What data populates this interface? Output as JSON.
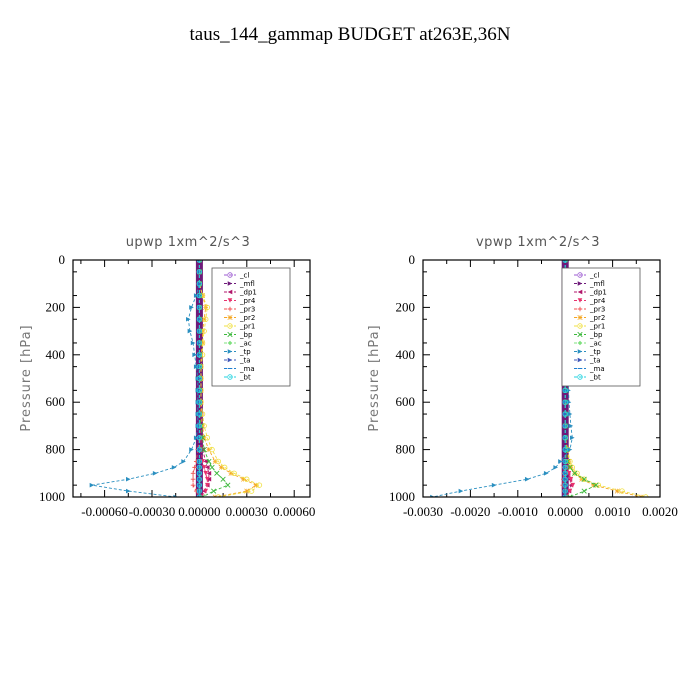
{
  "figure_title": "taus_144_gammap  BUDGET at263E,36N",
  "colors": {
    "_cl": "#9b59d0",
    "_mfl": "#6e1a7a",
    "_dp1": "#b0176b",
    "_pr4": "#e8336e",
    "_pr3": "#f05050",
    "_pr2": "#f5a623",
    "_pr1": "#f0e040",
    "_bp": "#3cb83c",
    "_ac": "#7ee07e",
    "_tp": "#2a8fc0",
    "_ta": "#3f56b8",
    "_ma": "#1f7fd0",
    "_bt": "#22d3e0"
  },
  "chart_data": [
    {
      "type": "line",
      "title": "upwp   1xm^2/s^3",
      "ylabel": "Pressure [hPa]",
      "xlabel": "",
      "xlim": [
        -0.0008,
        0.0007
      ],
      "ylim": [
        1000,
        0
      ],
      "yticks": [
        0,
        200,
        400,
        600,
        800,
        1000
      ],
      "yticklabels": [
        "0",
        "200",
        "400",
        "600",
        "800",
        "1000"
      ],
      "xticks": [
        -0.0006,
        -0.0003,
        0.0,
        0.0003,
        0.0006
      ],
      "xticklabels": [
        "-0.00060",
        "-0.00030",
        "0.00000",
        "0.00030",
        "0.00060"
      ],
      "legend_position": "top-right",
      "y": [
        0,
        50,
        100,
        150,
        200,
        250,
        300,
        350,
        400,
        450,
        500,
        550,
        600,
        650,
        700,
        750,
        800,
        850,
        875,
        900,
        925,
        950,
        975,
        1000
      ],
      "series": [
        {
          "name": "_cl",
          "values": [
            0,
            0,
            0,
            0,
            0,
            0,
            0,
            0,
            0,
            0,
            0,
            0,
            0,
            0,
            0,
            0,
            0,
            0,
            0,
            0,
            0,
            0,
            0,
            0
          ]
        },
        {
          "name": "_mfl",
          "values": [
            0,
            0,
            0,
            0,
            0,
            0,
            0,
            0,
            0,
            0,
            0,
            0,
            0,
            0,
            0,
            0,
            0,
            0,
            0,
            0,
            0,
            0,
            0,
            0
          ]
        },
        {
          "name": "_dp1",
          "values": [
            0,
            0,
            0,
            0,
            0,
            0,
            0,
            0,
            0,
            0,
            0,
            0,
            0,
            1e-05,
            1e-05,
            2e-05,
            2e-05,
            4e-05,
            5e-05,
            6e-05,
            6e-05,
            5e-05,
            3e-05,
            0
          ]
        },
        {
          "name": "_pr4",
          "values": [
            0,
            0,
            0,
            0,
            0,
            0,
            0,
            0,
            0,
            0,
            0,
            0,
            0,
            0,
            0,
            1e-05,
            1e-05,
            2e-05,
            3e-05,
            4e-05,
            5e-05,
            5e-05,
            4e-05,
            1e-05
          ]
        },
        {
          "name": "_pr3",
          "values": [
            0,
            0,
            0,
            0,
            0,
            0,
            0,
            0,
            0,
            0,
            0,
            0,
            0,
            0,
            0,
            0,
            -1e-05,
            -2e-05,
            -3e-05,
            -4e-05,
            -4e-05,
            -4e-05,
            -2e-05,
            0
          ]
        },
        {
          "name": "_pr2",
          "values": [
            0,
            0,
            0,
            2e-05,
            4e-05,
            3e-05,
            2e-05,
            2e-05,
            1e-05,
            1e-05,
            1e-05,
            1e-05,
            1e-05,
            1e-05,
            2e-05,
            3e-05,
            6e-05,
            0.0001,
            0.00014,
            0.0002,
            0.00028,
            0.00036,
            0.0003,
            0.0001
          ]
        },
        {
          "name": "_pr1",
          "values": [
            0,
            0,
            0,
            2e-05,
            5e-05,
            4e-05,
            3e-05,
            2e-05,
            2e-05,
            1e-05,
            1e-05,
            1e-05,
            1e-05,
            2e-05,
            3e-05,
            5e-05,
            8e-05,
            0.00012,
            0.00016,
            0.00022,
            0.0003,
            0.00038,
            0.00033,
            0.00012
          ]
        },
        {
          "name": "_bp",
          "values": [
            0,
            0,
            0,
            0,
            0,
            0,
            0,
            0,
            0,
            0,
            0,
            0,
            0,
            0,
            1e-05,
            2e-05,
            3e-05,
            6e-05,
            8e-05,
            0.00011,
            0.00015,
            0.00018,
            9e-05,
            2e-05
          ]
        },
        {
          "name": "_ac",
          "values": [
            0,
            0,
            0,
            0,
            0,
            0,
            0,
            0,
            0,
            0,
            0,
            0,
            0,
            0,
            0,
            0,
            0,
            0,
            0,
            0,
            0,
            0,
            0,
            0
          ]
        },
        {
          "name": "_tp",
          "values": [
            0,
            0,
            0,
            -2e-05,
            -5e-05,
            -7e-05,
            -6e-05,
            -4e-05,
            -3e-05,
            -2e-05,
            -1e-05,
            -1e-05,
            -1e-05,
            -1e-05,
            -1e-05,
            -2e-05,
            -5e-05,
            -0.0001,
            -0.00016,
            -0.00028,
            -0.00045,
            -0.00068,
            -0.00045,
            -0.00015
          ]
        },
        {
          "name": "_ta",
          "values": [
            0,
            0,
            0,
            0,
            0,
            0,
            0,
            0,
            0,
            0,
            0,
            0,
            0,
            0,
            0,
            0,
            0,
            0,
            0,
            0,
            0,
            0,
            0,
            0
          ]
        },
        {
          "name": "_ma",
          "values": [
            0,
            0,
            0,
            0,
            0,
            0,
            0,
            0,
            0,
            0,
            0,
            0,
            0,
            0,
            0,
            0,
            0,
            0,
            0,
            0,
            0,
            0,
            0,
            0
          ]
        },
        {
          "name": "_bt",
          "values": [
            0,
            0,
            0,
            0,
            0,
            0,
            0,
            0,
            0,
            0,
            0,
            0,
            0,
            0,
            0,
            0,
            0,
            0,
            0,
            0,
            0,
            0,
            0,
            0
          ]
        }
      ]
    },
    {
      "type": "line",
      "title": "vpwp   1xm^2/s^3",
      "ylabel": "Pressure [hPa]",
      "xlabel": "",
      "xlim": [
        -0.003,
        0.002
      ],
      "ylim": [
        1000,
        0
      ],
      "yticks": [
        0,
        200,
        400,
        600,
        800,
        1000
      ],
      "yticklabels": [
        "0",
        "200",
        "400",
        "600",
        "800",
        "1000"
      ],
      "xticks": [
        -0.003,
        -0.002,
        -0.001,
        0.0,
        0.001,
        0.002
      ],
      "xticklabels": [
        "-0.0030",
        "-0.0020",
        "-0.0010",
        "0.0000",
        "0.0010",
        "0.0020"
      ],
      "legend_position": "top-right",
      "y": [
        0,
        50,
        100,
        150,
        200,
        250,
        300,
        350,
        400,
        450,
        500,
        550,
        600,
        650,
        700,
        750,
        800,
        850,
        875,
        900,
        925,
        950,
        975,
        1000
      ],
      "series": [
        {
          "name": "_cl",
          "values": [
            0,
            0,
            0,
            0,
            0,
            0,
            0,
            0,
            0,
            0,
            0,
            0,
            0,
            0,
            0,
            0,
            0,
            0,
            0,
            0,
            0,
            0,
            0,
            0
          ]
        },
        {
          "name": "_mfl",
          "values": [
            0,
            0,
            0,
            0,
            0,
            0,
            0,
            0,
            0,
            0,
            0,
            0,
            0,
            0,
            0,
            0,
            0,
            0,
            0,
            0,
            0,
            0,
            0,
            0
          ]
        },
        {
          "name": "_dp1",
          "values": [
            0,
            0,
            0,
            0,
            0,
            0,
            0,
            0,
            0,
            0,
            0,
            0,
            0,
            0,
            0,
            0,
            0,
            2e-05,
            4e-05,
            6e-05,
            0.0001,
            0.00012,
            8e-05,
            2e-05
          ]
        },
        {
          "name": "_pr4",
          "values": [
            0,
            0,
            0,
            0,
            0,
            0,
            0,
            0,
            0,
            0,
            0,
            0,
            0,
            0,
            0,
            0,
            0,
            2e-05,
            4e-05,
            8e-05,
            0.00012,
            0.00016,
            0.0001,
            3e-05
          ]
        },
        {
          "name": "_pr3",
          "values": [
            0,
            0,
            0,
            0,
            0,
            0,
            0,
            0,
            0,
            0,
            0,
            0,
            0,
            0,
            0,
            0,
            0,
            -1e-05,
            -2e-05,
            -3e-05,
            -4e-05,
            -5e-05,
            -3e-05,
            0
          ]
        },
        {
          "name": "_pr2",
          "values": [
            0,
            0,
            0,
            0,
            0,
            0,
            0,
            0,
            0,
            0,
            0,
            0,
            0,
            0,
            0,
            0,
            5e-05,
            8e-05,
            0.00012,
            0.0002,
            0.00035,
            0.0006,
            0.0011,
            0.0016
          ]
        },
        {
          "name": "_pr1",
          "values": [
            0,
            0,
            0,
            0,
            0,
            0,
            0,
            0,
            0,
            0,
            0,
            0,
            0,
            0,
            0,
            0,
            5e-05,
            0.0001,
            0.00015,
            0.00025,
            0.0004,
            0.0007,
            0.0012,
            0.0017
          ]
        },
        {
          "name": "_bp",
          "values": [
            0,
            0,
            0,
            0,
            0,
            0,
            0,
            0,
            0,
            0,
            0,
            0,
            0,
            0,
            0,
            0,
            2e-05,
            5e-05,
            0.0001,
            0.0002,
            0.0004,
            0.00065,
            0.0004,
            0.0001
          ]
        },
        {
          "name": "_ac",
          "values": [
            0,
            0,
            0,
            0,
            0,
            0,
            0,
            0,
            0,
            0,
            0,
            0,
            0,
            0,
            0,
            0,
            0,
            0,
            0,
            0,
            0,
            0,
            0,
            0
          ]
        },
        {
          "name": "_tp",
          "values": [
            0,
            0,
            0,
            0,
            0,
            0,
            2e-05,
            3e-05,
            4e-05,
            5e-05,
            6e-05,
            7e-05,
            8e-05,
            0.0001,
            0.00012,
            0.00015,
            0.0001,
            -0.0001,
            -0.0002,
            -0.0004,
            -0.0008,
            -0.0015,
            -0.0022,
            -0.0028
          ]
        },
        {
          "name": "_ta",
          "values": [
            0,
            0,
            0,
            0,
            0,
            0,
            0,
            0,
            0,
            0,
            0,
            0,
            0,
            0,
            0,
            0,
            0,
            0,
            0,
            0,
            0,
            0,
            0,
            0
          ]
        },
        {
          "name": "_ma",
          "values": [
            0,
            0,
            0,
            0,
            0,
            0,
            0,
            0,
            0,
            0,
            0,
            0,
            0,
            0,
            0,
            0,
            0,
            0,
            0,
            0,
            0,
            0,
            0,
            0
          ]
        },
        {
          "name": "_bt",
          "values": [
            0,
            0,
            0,
            0,
            0,
            0,
            0,
            0,
            0,
            0,
            0,
            0,
            0,
            0,
            0,
            0,
            0,
            0,
            0,
            0,
            0,
            0,
            0,
            0
          ]
        }
      ]
    }
  ]
}
